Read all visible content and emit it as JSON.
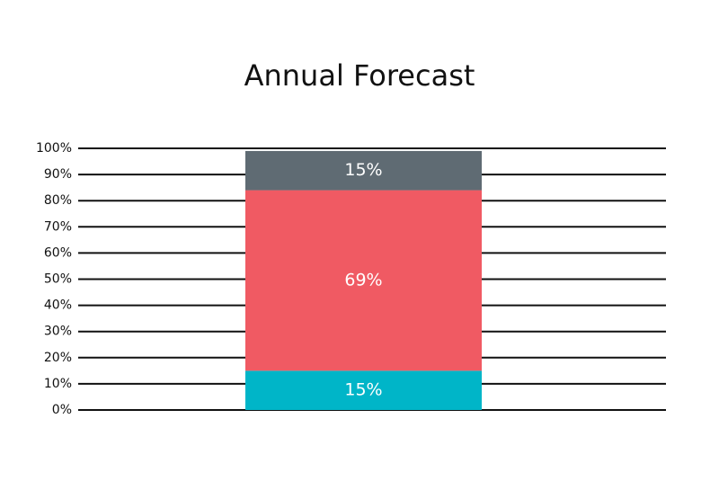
{
  "chart_data": {
    "type": "stacked-bar",
    "title": "Annual Forecast",
    "categories": [
      null
    ],
    "series": [
      {
        "color": "#00b5c8",
        "values": [
          15
        ],
        "value_labels": [
          "15%"
        ]
      },
      {
        "color": "#f05a63",
        "values": [
          69
        ],
        "value_labels": [
          "69%"
        ]
      },
      {
        "color": "#5f6b73",
        "values": [
          15
        ],
        "value_labels": [
          "15%"
        ]
      }
    ],
    "ylim": [
      0,
      100
    ],
    "yticks": [
      {
        "value": 0,
        "label": "0%"
      },
      {
        "value": 10,
        "label": "10%"
      },
      {
        "value": 20,
        "label": "20%"
      },
      {
        "value": 30,
        "label": "30%"
      },
      {
        "value": 40,
        "label": "40%"
      },
      {
        "value": 50,
        "label": "50%"
      },
      {
        "value": 60,
        "label": "60%"
      },
      {
        "value": 70,
        "label": "70%"
      },
      {
        "value": 80,
        "label": "80%"
      },
      {
        "value": 90,
        "label": "90%"
      },
      {
        "value": 100,
        "label": "100%"
      }
    ],
    "grid": true
  }
}
